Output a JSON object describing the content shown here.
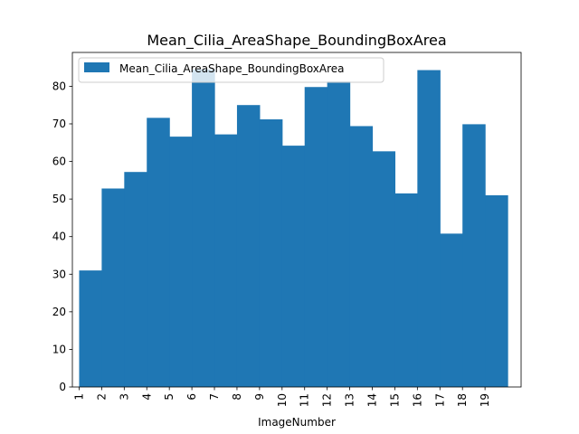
{
  "chart_data": {
    "type": "bar",
    "title": "Mean_Cilia_AreaShape_BoundingBoxArea",
    "xlabel": "ImageNumber",
    "ylabel": "",
    "categories": [
      "1",
      "2",
      "3",
      "4",
      "5",
      "6",
      "7",
      "8",
      "9",
      "10",
      "11",
      "12",
      "13",
      "14",
      "15",
      "16",
      "17",
      "18",
      "19"
    ],
    "series": [
      {
        "name": "Mean_Cilia_AreaShape_BoundingBoxArea",
        "color": "#1f77b4",
        "values": [
          31.0,
          52.8,
          57.2,
          71.6,
          66.6,
          84.5,
          67.2,
          75.0,
          71.2,
          64.2,
          79.8,
          81.3,
          69.4,
          62.7,
          51.5,
          84.3,
          40.8,
          69.9,
          51.0
        ]
      }
    ],
    "ylim": [
      0,
      89
    ],
    "yticks": [
      0,
      10,
      20,
      30,
      40,
      50,
      60,
      70,
      80
    ],
    "x_tick_rotation": 90,
    "grid": false,
    "legend": "upper left"
  }
}
